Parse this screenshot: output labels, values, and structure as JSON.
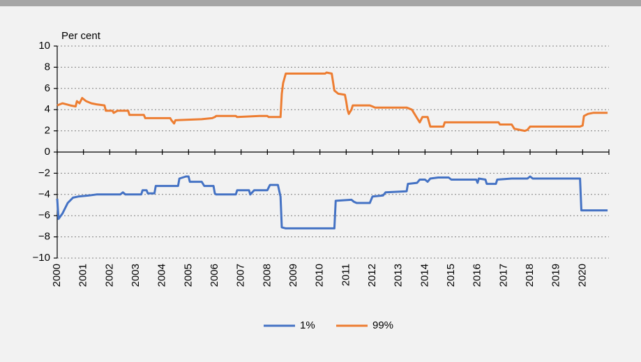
{
  "chart_data": {
    "type": "line",
    "y_label": "Per cent",
    "xlim": [
      2000,
      2021
    ],
    "xticks": [
      2000,
      2001,
      2002,
      2003,
      2004,
      2005,
      2006,
      2007,
      2008,
      2009,
      2010,
      2011,
      2012,
      2013,
      2014,
      2015,
      2016,
      2017,
      2018,
      2019,
      2020
    ],
    "ylim": [
      -10,
      10
    ],
    "yticks": [
      {
        "value": -10,
        "label": "−10"
      },
      {
        "value": -8,
        "label": "−8"
      },
      {
        "value": -6,
        "label": "−6"
      },
      {
        "value": -4,
        "label": "−4"
      },
      {
        "value": -2,
        "label": "−2"
      },
      0,
      2,
      4,
      6,
      8,
      10
    ],
    "grid": true,
    "legend": "bottom",
    "series": [
      {
        "name": "1%",
        "color": "#4472c4",
        "x": [
          2000,
          2000.05,
          2000.2,
          2000.4,
          2000.6,
          2000.8,
          2001.2,
          2001.5,
          2002.4,
          2002.5,
          2002.6,
          2003.2,
          2003.25,
          2003.4,
          2003.45,
          2003.7,
          2003.75,
          2004.6,
          2004.65,
          2004.9,
          2005.0,
          2005.05,
          2005.5,
          2005.6,
          2005.95,
          2006.0,
          2006.05,
          2006.8,
          2006.85,
          2007.3,
          2007.35,
          2007.5,
          2008.0,
          2008.1,
          2008.4,
          2008.5,
          2008.55,
          2008.7,
          2010.55,
          2010.6,
          2011.2,
          2011.3,
          2011.4,
          2011.9,
          2012.0,
          2012.4,
          2012.5,
          2013.3,
          2013.35,
          2013.7,
          2013.8,
          2014.0,
          2014.1,
          2014.2,
          2014.5,
          2014.9,
          2015.0,
          2015.95,
          2016.0,
          2016.05,
          2016.3,
          2016.35,
          2016.7,
          2016.75,
          2017.3,
          2017.9,
          2018.0,
          2018.1,
          2019.9,
          2019.95,
          2020.95
        ],
        "values": [
          -4.4,
          -6.3,
          -5.8,
          -4.8,
          -4.3,
          -4.2,
          -4.1,
          -4.0,
          -4.0,
          -3.8,
          -4.0,
          -4.0,
          -3.6,
          -3.6,
          -3.9,
          -3.9,
          -3.2,
          -3.2,
          -2.5,
          -2.3,
          -2.3,
          -2.8,
          -2.8,
          -3.2,
          -3.2,
          -3.9,
          -4.0,
          -4.0,
          -3.6,
          -3.6,
          -4.0,
          -3.6,
          -3.6,
          -3.1,
          -3.1,
          -4.2,
          -7.1,
          -7.2,
          -7.2,
          -4.6,
          -4.5,
          -4.7,
          -4.8,
          -4.8,
          -4.2,
          -4.1,
          -3.8,
          -3.7,
          -3.0,
          -2.9,
          -2.6,
          -2.6,
          -2.8,
          -2.5,
          -2.4,
          -2.4,
          -2.6,
          -2.6,
          -2.9,
          -2.5,
          -2.6,
          -3.0,
          -3.0,
          -2.6,
          -2.5,
          -2.5,
          -2.3,
          -2.5,
          -2.5,
          -5.5,
          -5.5
        ]
      },
      {
        "name": "99%",
        "color": "#ed7d31",
        "x": [
          2000,
          2000.2,
          2000.5,
          2000.7,
          2000.75,
          2000.85,
          2000.95,
          2001.1,
          2001.3,
          2001.5,
          2001.8,
          2001.85,
          2002.1,
          2002.15,
          2002.3,
          2002.7,
          2002.75,
          2003.3,
          2003.35,
          2004.3,
          2004.35,
          2004.45,
          2004.5,
          2005.5,
          2005.9,
          2006.0,
          2006.05,
          2006.8,
          2006.85,
          2007.7,
          2008.0,
          2008.05,
          2008.5,
          2008.55,
          2008.6,
          2008.7,
          2010.2,
          2010.25,
          2010.45,
          2010.55,
          2010.7,
          2010.95,
          2011.0,
          2011.05,
          2011.1,
          2011.2,
          2011.25,
          2011.9,
          2012.0,
          2012.1,
          2013.3,
          2013.5,
          2013.6,
          2013.7,
          2013.8,
          2013.9,
          2014.1,
          2014.2,
          2014.7,
          2014.75,
          2016.8,
          2016.85,
          2017.3,
          2017.4,
          2017.8,
          2017.9,
          2018.0,
          2019.9,
          2020.0,
          2020.05,
          2020.2,
          2020.4,
          2020.95
        ],
        "values": [
          4.4,
          4.6,
          4.4,
          4.3,
          4.8,
          4.6,
          5.1,
          4.8,
          4.6,
          4.5,
          4.4,
          3.9,
          3.9,
          3.7,
          3.9,
          3.9,
          3.5,
          3.5,
          3.2,
          3.2,
          3.0,
          2.7,
          3.0,
          3.1,
          3.2,
          3.3,
          3.4,
          3.4,
          3.3,
          3.4,
          3.4,
          3.3,
          3.3,
          5.5,
          6.5,
          7.4,
          7.4,
          7.5,
          7.4,
          5.8,
          5.5,
          5.4,
          4.8,
          4.0,
          3.6,
          4.0,
          4.4,
          4.4,
          4.3,
          4.2,
          4.2,
          4.0,
          3.6,
          3.2,
          2.8,
          3.3,
          3.3,
          2.4,
          2.4,
          2.8,
          2.8,
          2.6,
          2.6,
          2.2,
          2.0,
          2.1,
          2.4,
          2.4,
          2.5,
          3.4,
          3.6,
          3.7,
          3.7
        ]
      }
    ]
  }
}
